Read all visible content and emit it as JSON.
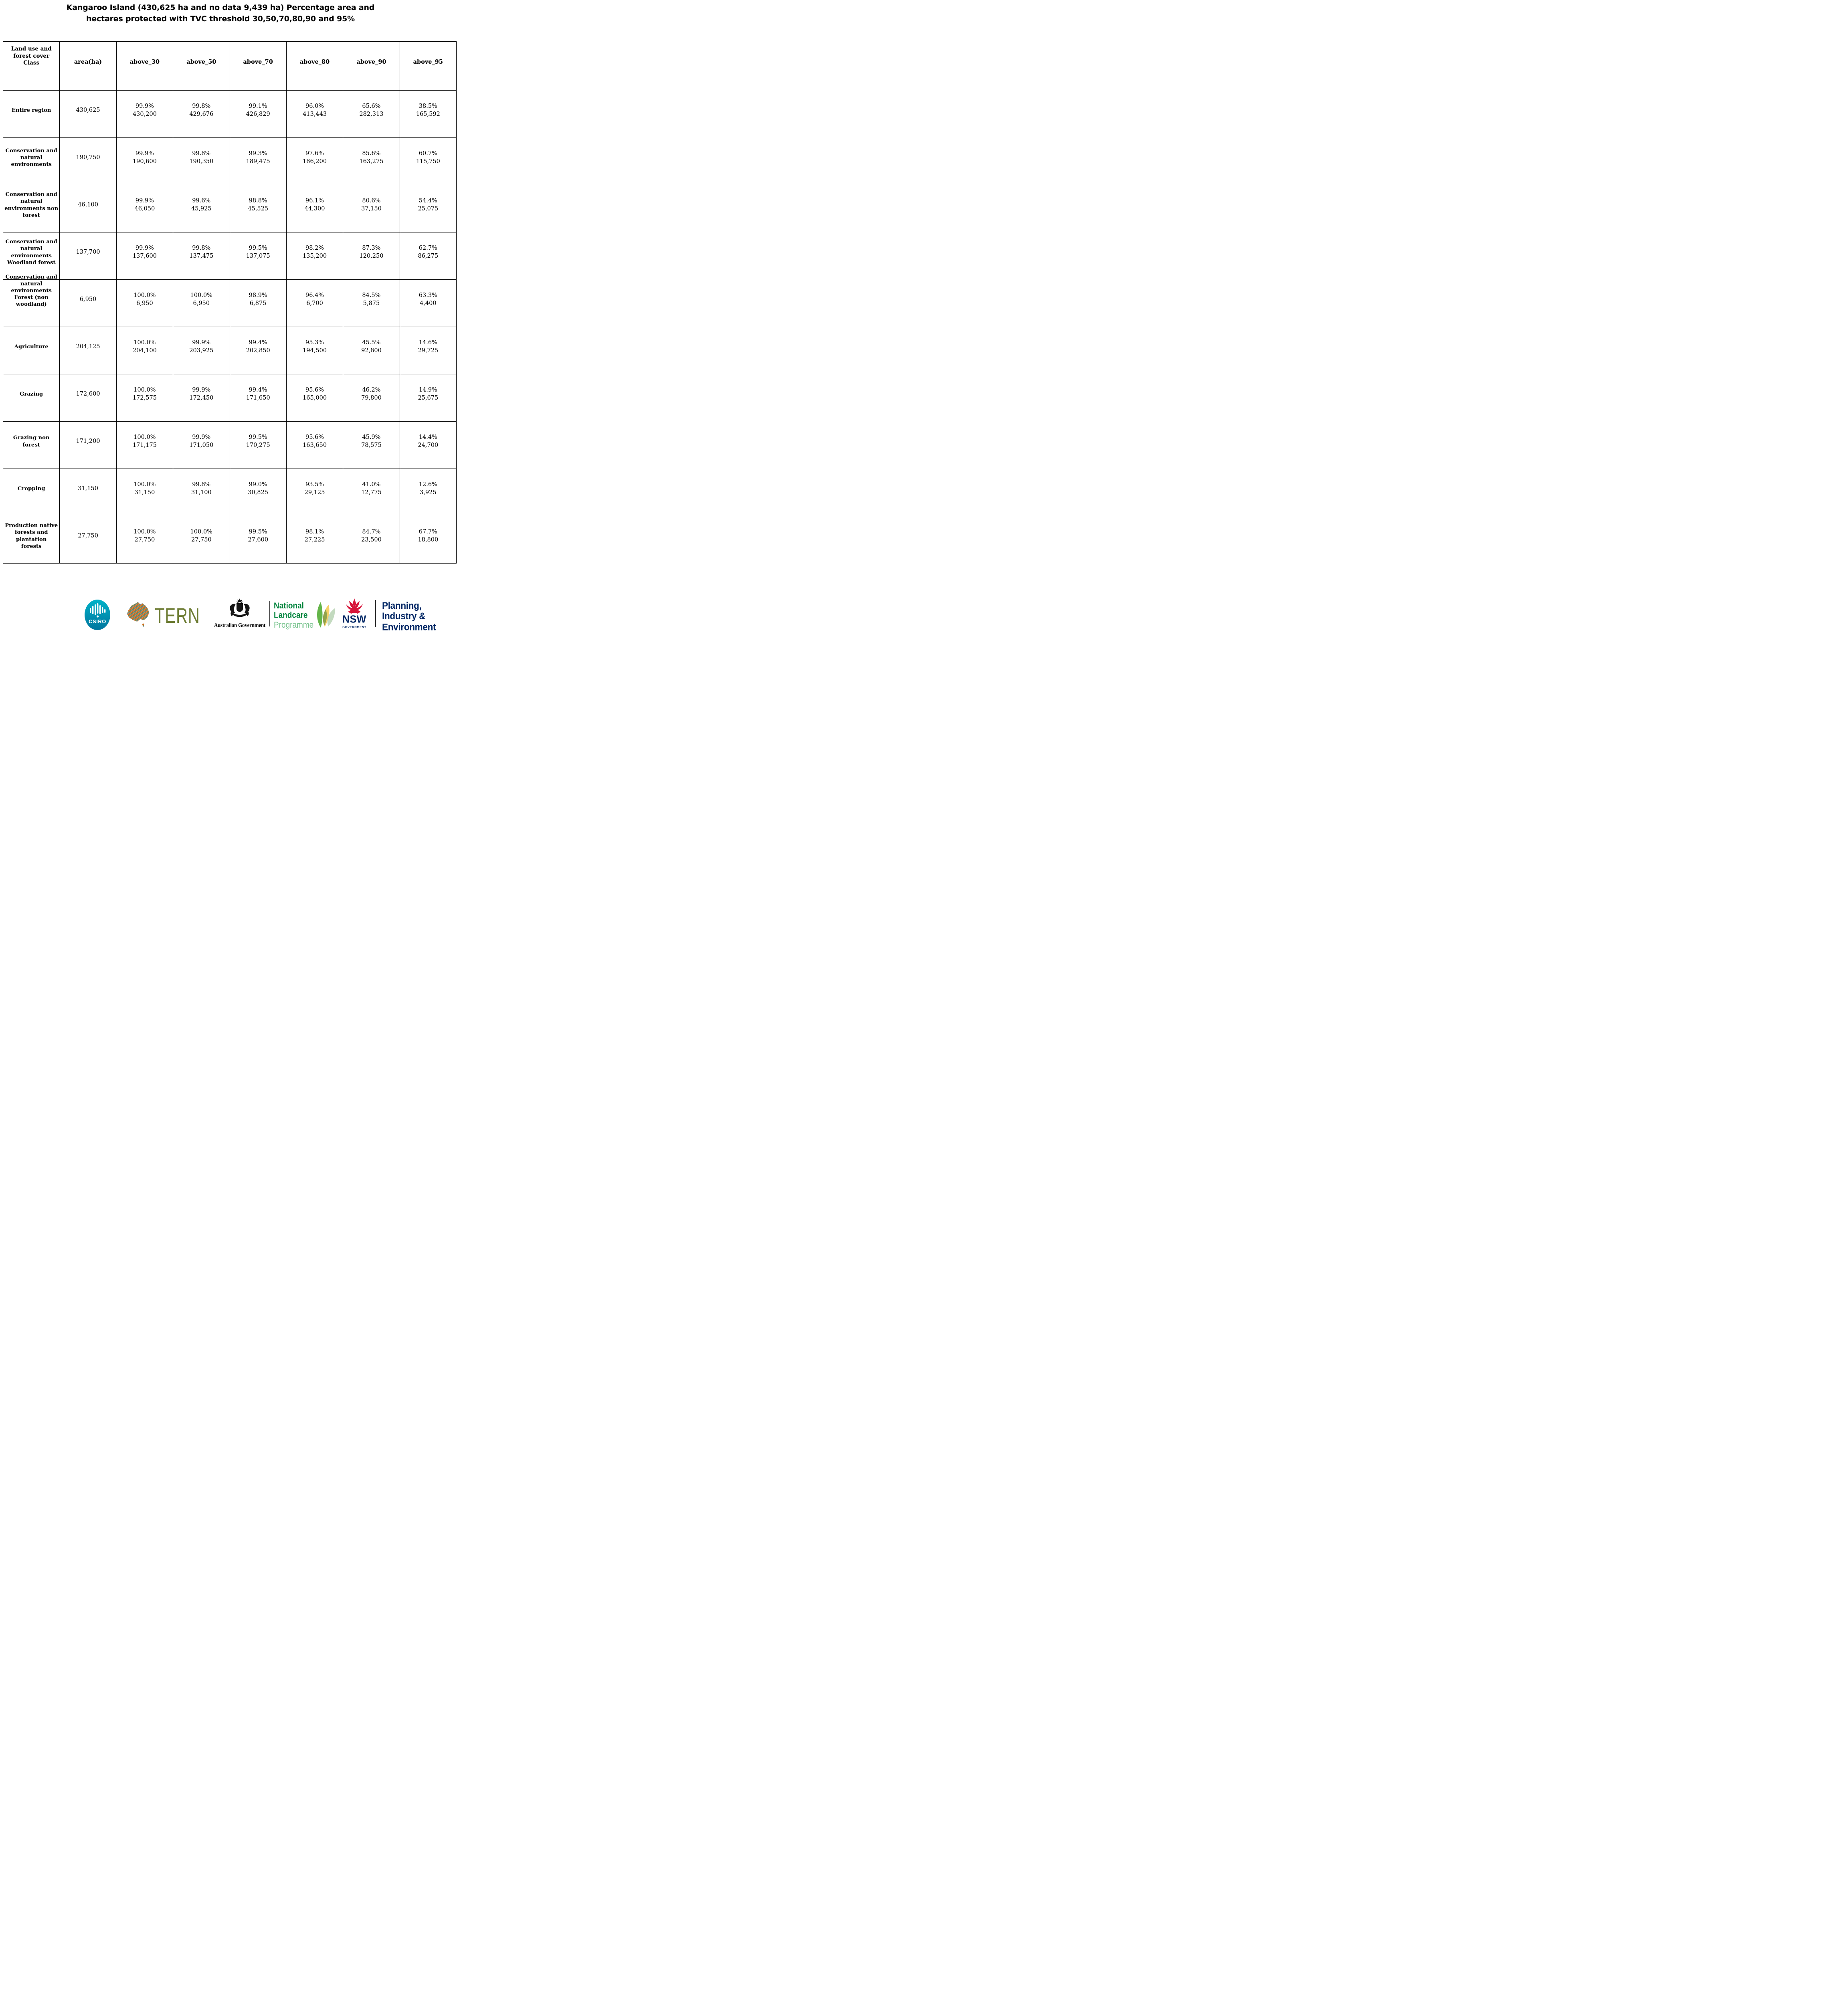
{
  "title": {
    "line1": "Kangaroo Island (430,625 ha and no data 9,439 ha) Percentage area and",
    "line2": "hectares protected with TVC threshold 30,50,70,80,90 and 95%"
  },
  "table": {
    "columns": [
      "Land use and\nforest cover\nClass",
      "area(ha)",
      "above_30",
      "above_50",
      "above_70",
      "above_80",
      "above_90",
      "above_95"
    ],
    "rows": [
      {
        "label": "Entire region",
        "area": "430,625",
        "cells": [
          [
            "99.9%",
            "430,200"
          ],
          [
            "99.8%",
            "429,676"
          ],
          [
            "99.1%",
            "426,829"
          ],
          [
            "96.0%",
            "413,443"
          ],
          [
            "65.6%",
            "282,313"
          ],
          [
            "38.5%",
            "165,592"
          ]
        ]
      },
      {
        "label": "Conservation and\nnatural\nenvironments",
        "area": "190,750",
        "cells": [
          [
            "99.9%",
            "190,600"
          ],
          [
            "99.8%",
            "190,350"
          ],
          [
            "99.3%",
            "189,475"
          ],
          [
            "97.6%",
            "186,200"
          ],
          [
            "85.6%",
            "163,275"
          ],
          [
            "60.7%",
            "115,750"
          ]
        ]
      },
      {
        "label": "Conservation and\nnatural\nenvironments non\nforest",
        "area": "46,100",
        "cells": [
          [
            "99.9%",
            "46,050"
          ],
          [
            "99.6%",
            "45,925"
          ],
          [
            "98.8%",
            "45,525"
          ],
          [
            "96.1%",
            "44,300"
          ],
          [
            "80.6%",
            "37,150"
          ],
          [
            "54.4%",
            "25,075"
          ]
        ]
      },
      {
        "label": "Conservation and\nnatural\nenvironments\nWoodland forest",
        "area": "137,700",
        "cells": [
          [
            "99.9%",
            "137,600"
          ],
          [
            "99.8%",
            "137,475"
          ],
          [
            "99.5%",
            "137,075"
          ],
          [
            "98.2%",
            "135,200"
          ],
          [
            "87.3%",
            "120,250"
          ],
          [
            "62.7%",
            "86,275"
          ]
        ]
      },
      {
        "label": "Conservation and\nnatural\nenvironments\nForest (non\nwoodland)",
        "area": "6,950",
        "cells": [
          [
            "100.0%",
            "6,950"
          ],
          [
            "100.0%",
            "6,950"
          ],
          [
            "98.9%",
            "6,875"
          ],
          [
            "96.4%",
            "6,700"
          ],
          [
            "84.5%",
            "5,875"
          ],
          [
            "63.3%",
            "4,400"
          ]
        ]
      },
      {
        "label": "Agriculture",
        "area": "204,125",
        "cells": [
          [
            "100.0%",
            "204,100"
          ],
          [
            "99.9%",
            "203,925"
          ],
          [
            "99.4%",
            "202,850"
          ],
          [
            "95.3%",
            "194,500"
          ],
          [
            "45.5%",
            "92,800"
          ],
          [
            "14.6%",
            "29,725"
          ]
        ]
      },
      {
        "label": "Grazing",
        "area": "172,600",
        "cells": [
          [
            "100.0%",
            "172,575"
          ],
          [
            "99.9%",
            "172,450"
          ],
          [
            "99.4%",
            "171,650"
          ],
          [
            "95.6%",
            "165,000"
          ],
          [
            "46.2%",
            "79,800"
          ],
          [
            "14.9%",
            "25,675"
          ]
        ]
      },
      {
        "label": "Grazing non\nforest",
        "area": "171,200",
        "cells": [
          [
            "100.0%",
            "171,175"
          ],
          [
            "99.9%",
            "171,050"
          ],
          [
            "99.5%",
            "170,275"
          ],
          [
            "95.6%",
            "163,650"
          ],
          [
            "45.9%",
            "78,575"
          ],
          [
            "14.4%",
            "24,700"
          ]
        ]
      },
      {
        "label": "Cropping",
        "area": "31,150",
        "cells": [
          [
            "100.0%",
            "31,150"
          ],
          [
            "99.8%",
            "31,100"
          ],
          [
            "99.0%",
            "30,825"
          ],
          [
            "93.5%",
            "29,125"
          ],
          [
            "41.0%",
            "12,775"
          ],
          [
            "12.6%",
            "3,925"
          ]
        ]
      },
      {
        "label": "Production native\nforests and\nplantation\nforests",
        "area": "27,750",
        "cells": [
          [
            "100.0%",
            "27,750"
          ],
          [
            "100.0%",
            "27,750"
          ],
          [
            "99.5%",
            "27,600"
          ],
          [
            "98.1%",
            "27,225"
          ],
          [
            "84.7%",
            "23,500"
          ],
          [
            "67.7%",
            "18,800"
          ]
        ]
      }
    ]
  },
  "footer": {
    "csiro": {
      "label": "CSIRO"
    },
    "tern": {
      "label": "TERN"
    },
    "australian_government": {
      "label": "Australian Government"
    },
    "landcare": {
      "line1": "National",
      "line2": "Landcare",
      "line3": "Programme"
    },
    "nsw": {
      "label": "NSW",
      "sublabel": "GOVERNMENT"
    },
    "planning": {
      "line1": "Planning,",
      "line2": "Industry &",
      "line3": "Environment"
    }
  },
  "colors": {
    "csiro_teal_top": "#00b2c8",
    "csiro_teal_bottom": "#00759e",
    "tern_olive": "#6d7c33",
    "landcare_green": "#00843d",
    "landcare_light_green": "#76c28c",
    "leaf_green": "#5cb13f",
    "leaf_gold": "#f5c84c",
    "leaf_sage": "#b9d4b4",
    "nsw_navy": "#002664",
    "waratah_red": "#d7153a",
    "table_border": "#000000"
  }
}
